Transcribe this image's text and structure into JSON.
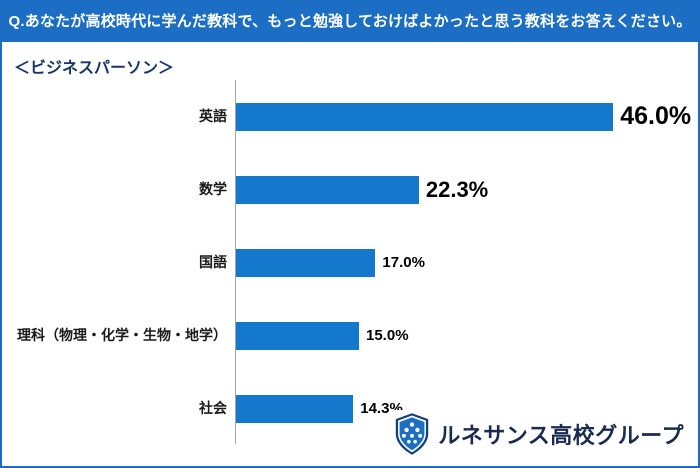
{
  "header": {
    "question": "Q.あなたが高校時代に学んだ教科で、もっと勉強しておけばよかったと思う教科をお答えください。"
  },
  "chart": {
    "group_label": "＜ビジネスパーソン＞"
  },
  "chart_data": {
    "type": "bar",
    "orientation": "horizontal",
    "title": "あなたが高校時代に学んだ教科で、もっと勉強しておけばよかったと思う教科（ビジネスパーソン）",
    "categories": [
      "英語",
      "数学",
      "国語",
      "理科（物理・化学・生物・地学）",
      "社会"
    ],
    "values": [
      46.0,
      22.3,
      17.0,
      15.0,
      14.3
    ],
    "value_labels": [
      "46.0%",
      "22.3%",
      "17.0%",
      "15.0%",
      "14.3%"
    ],
    "xlabel": "",
    "ylabel": "",
    "xlim": [
      0,
      50
    ],
    "grid": false,
    "legend": "none",
    "bar_color": "#1478cd"
  },
  "logo": {
    "text": "ルネサンス高校グループ"
  }
}
